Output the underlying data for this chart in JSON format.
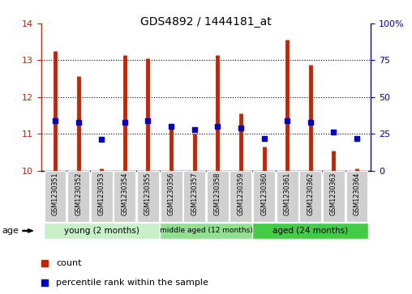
{
  "title": "GDS4892 / 1444181_at",
  "samples": [
    "GSM1230351",
    "GSM1230352",
    "GSM1230353",
    "GSM1230354",
    "GSM1230355",
    "GSM1230356",
    "GSM1230357",
    "GSM1230358",
    "GSM1230359",
    "GSM1230360",
    "GSM1230361",
    "GSM1230362",
    "GSM1230363",
    "GSM1230364"
  ],
  "count_values": [
    13.26,
    12.56,
    10.05,
    13.15,
    13.05,
    11.2,
    11.0,
    13.15,
    11.55,
    10.65,
    13.57,
    12.88,
    10.55,
    10.05
  ],
  "percentile_values": [
    34,
    33,
    21,
    33,
    34,
    30,
    28,
    30,
    29,
    22,
    34,
    33,
    26,
    22
  ],
  "ylim_left": [
    10,
    14
  ],
  "ylim_right": [
    0,
    100
  ],
  "yticks_left": [
    10,
    11,
    12,
    13,
    14
  ],
  "yticks_right": [
    0,
    25,
    50,
    75,
    100
  ],
  "ytick_right_labels": [
    "0",
    "25",
    "50",
    "75",
    "100%"
  ],
  "bar_color": "#cc2200",
  "dot_color": "#0000cc",
  "group_colors": [
    "#c8f0c8",
    "#90e090",
    "#44cc44"
  ],
  "group_labels": [
    "young (2 months)",
    "middle aged (12 months)",
    "aged (24 months)"
  ],
  "group_ranges": [
    [
      0,
      5
    ],
    [
      5,
      9
    ],
    [
      9,
      14
    ]
  ],
  "sample_bg": "#d0d0d0",
  "plot_bg": "#ffffff",
  "legend_red": "count",
  "legend_blue": "percentile rank within the sample",
  "age_label": "age",
  "bar_linewidth": 3.5,
  "dot_markersize": 5
}
